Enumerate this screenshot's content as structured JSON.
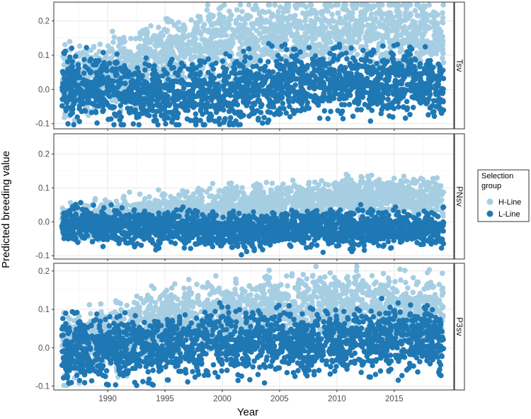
{
  "chart_data": {
    "type": "scatter",
    "title": "",
    "xlabel": "Year",
    "ylabel": "Predicted breeding value",
    "xlim": [
      1985.3,
      2020.2
    ],
    "x_ticks": [
      1990,
      1995,
      2000,
      2005,
      2010,
      2015
    ],
    "grid": true,
    "legend": {
      "title": "Selection group",
      "title_lines": [
        "Selection",
        "group"
      ],
      "placement": "right",
      "entries": [
        {
          "name": "H-Line",
          "color": "#a6cee3"
        },
        {
          "name": "L-Line",
          "color": "#1f78b4"
        }
      ]
    },
    "panels": [
      {
        "label": "Tsv",
        "ylim": [
          -0.115,
          0.255
        ],
        "y_ticks": [
          -0.1,
          0.0,
          0.1,
          0.2
        ],
        "series": [
          {
            "name": "H-Line",
            "color": "#a6cee3",
            "trend": [
              [
                1986,
                0.02
              ],
              [
                1990,
                0.04
              ],
              [
                1995,
                0.1
              ],
              [
                2000,
                0.14
              ],
              [
                2005,
                0.16
              ],
              [
                2010,
                0.17
              ],
              [
                2015,
                0.17
              ],
              [
                2019.3,
                0.16
              ]
            ],
            "spread": 0.05
          },
          {
            "name": "L-Line",
            "color": "#1f78b4",
            "trend": [
              [
                1986,
                0.01
              ],
              [
                1990,
                0.0
              ],
              [
                1995,
                -0.02
              ],
              [
                2000,
                -0.01
              ],
              [
                2005,
                0.02
              ],
              [
                2010,
                0.02
              ],
              [
                2015,
                0.02
              ],
              [
                2019.3,
                0.01
              ]
            ],
            "spread": 0.045
          }
        ]
      },
      {
        "label": "PNsv",
        "ylim": [
          -0.11,
          0.26
        ],
        "y_ticks": [
          -0.1,
          0.0,
          0.1,
          0.2
        ],
        "series": [
          {
            "name": "H-Line",
            "color": "#a6cee3",
            "trend": [
              [
                1986,
                0.0
              ],
              [
                1990,
                0.01
              ],
              [
                1995,
                0.03
              ],
              [
                2000,
                0.05
              ],
              [
                2005,
                0.06
              ],
              [
                2010,
                0.075
              ],
              [
                2015,
                0.075
              ],
              [
                2019.3,
                0.07
              ]
            ],
            "spread": 0.025
          },
          {
            "name": "L-Line",
            "color": "#1f78b4",
            "trend": [
              [
                1986,
                0.0
              ],
              [
                1990,
                -0.01
              ],
              [
                1995,
                -0.02
              ],
              [
                2000,
                -0.03
              ],
              [
                2005,
                -0.02
              ],
              [
                2010,
                -0.02
              ],
              [
                2015,
                -0.02
              ],
              [
                2019.3,
                -0.02
              ]
            ],
            "spread": 0.025
          }
        ]
      },
      {
        "label": "P3sv",
        "ylim": [
          -0.11,
          0.22
        ],
        "y_ticks": [
          -0.1,
          0.0,
          0.1,
          0.2
        ],
        "series": [
          {
            "name": "H-Line",
            "color": "#a6cee3",
            "trend": [
              [
                1986,
                0.0
              ],
              [
                1990,
                0.02
              ],
              [
                1995,
                0.07
              ],
              [
                2000,
                0.09
              ],
              [
                2005,
                0.11
              ],
              [
                2010,
                0.11
              ],
              [
                2015,
                0.1
              ],
              [
                2019.3,
                0.1
              ]
            ],
            "spread": 0.04
          },
          {
            "name": "L-Line",
            "color": "#1f78b4",
            "trend": [
              [
                1986,
                0.0
              ],
              [
                1990,
                0.0
              ],
              [
                1995,
                0.0
              ],
              [
                2000,
                0.01
              ],
              [
                2005,
                0.01
              ],
              [
                2010,
                0.01
              ],
              [
                2015,
                0.02
              ],
              [
                2019.3,
                0.02
              ]
            ],
            "spread": 0.04
          }
        ]
      }
    ]
  }
}
